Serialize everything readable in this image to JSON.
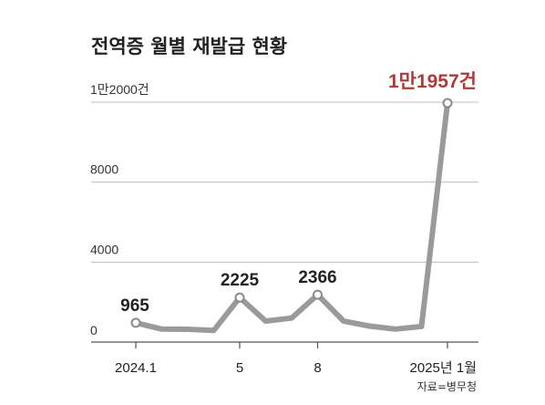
{
  "chart_data": {
    "type": "line",
    "title": "전역증 월별 재발급 현황",
    "source": "자료=병무청",
    "ylim": [
      0,
      12000
    ],
    "yticks": [
      {
        "value": 0,
        "label": "0"
      },
      {
        "value": 4000,
        "label": "4000"
      },
      {
        "value": 8000,
        "label": "8000"
      },
      {
        "value": 12000,
        "label": "1만2000건"
      }
    ],
    "grid": true,
    "x": [
      "2024.1",
      "2024.2",
      "2024.3",
      "2024.4",
      "2024.5",
      "2024.6",
      "2024.7",
      "2024.8",
      "2024.9",
      "2024.10",
      "2024.11",
      "2024.12",
      "2025.1"
    ],
    "xticks": [
      {
        "index": 0,
        "label": "2024.1"
      },
      {
        "index": 4,
        "label": "5"
      },
      {
        "index": 7,
        "label": "8"
      },
      {
        "index": 12,
        "label": "2025년 1월"
      }
    ],
    "series": [
      {
        "values": [
          965,
          650,
          640,
          580,
          2225,
          1050,
          1200,
          2366,
          1050,
          800,
          650,
          780,
          11957
        ]
      }
    ],
    "data_labels": [
      {
        "index": 0,
        "text": "965"
      },
      {
        "index": 4,
        "text": "2225"
      },
      {
        "index": 7,
        "text": "2366"
      },
      {
        "index": 12,
        "text": "1만1957건",
        "highlight": true
      }
    ],
    "colors": {
      "line": "#9a9a9a",
      "highlight": "#b03a3a",
      "grid": "#bdbdbd",
      "marker_fill": "#ffffff"
    }
  }
}
